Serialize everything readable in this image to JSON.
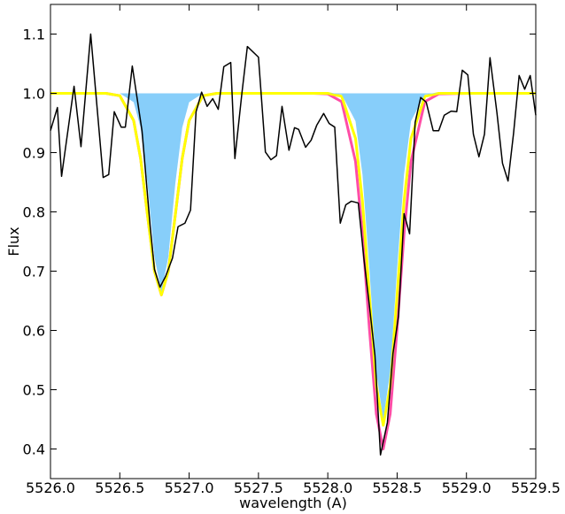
{
  "chart_data": {
    "type": "line",
    "xlabel": "wavelength (A)",
    "ylabel": "Flux",
    "xlim": [
      5526.0,
      5529.5
    ],
    "ylim": [
      0.35,
      1.15
    ],
    "xticks": [
      {
        "value": 5526.0,
        "label": "5526.0"
      },
      {
        "value": 5526.5,
        "label": "5526.5"
      },
      {
        "value": 5527.0,
        "label": "5527.0"
      },
      {
        "value": 5527.5,
        "label": "5527.5"
      },
      {
        "value": 5528.0,
        "label": "5528.0"
      },
      {
        "value": 5528.5,
        "label": "5528.5"
      },
      {
        "value": 5529.0,
        "label": "5529.0"
      },
      {
        "value": 5529.5,
        "label": "5529.5"
      }
    ],
    "yticks": [
      0.4,
      0.5,
      0.6,
      0.7,
      0.8,
      0.9,
      {
        "value": 1.0,
        "label": "1.0"
      },
      1.1
    ],
    "series": [
      {
        "color": "#ff4da6",
        "fill": false,
        "x": [
          5526.0,
          5526.4,
          5526.5,
          5526.6,
          5526.65,
          5526.7,
          5526.75,
          5526.8,
          5526.85,
          5526.9,
          5526.95,
          5527.0,
          5527.1,
          5527.2,
          5527.6,
          5527.9,
          5528.0,
          5528.1,
          5528.2,
          5528.25,
          5528.3,
          5528.35,
          5528.4,
          5528.45,
          5528.5,
          5528.55,
          5528.6,
          5528.7,
          5528.8,
          5529.0,
          5529.3,
          5529.5
        ],
        "values": [
          1.0,
          1.0,
          0.996,
          0.954,
          0.89,
          0.794,
          0.7,
          0.66,
          0.7,
          0.794,
          0.89,
          0.954,
          0.996,
          1.0,
          1.0,
          1.0,
          0.999,
          0.986,
          0.885,
          0.763,
          0.603,
          0.459,
          0.4,
          0.459,
          0.603,
          0.763,
          0.885,
          0.986,
          0.999,
          1.0,
          1.0,
          1.0
        ]
      },
      {
        "color": "#ffff00",
        "fill": false,
        "x": [
          5526.0,
          5526.4,
          5526.5,
          5526.6,
          5526.65,
          5526.7,
          5526.75,
          5526.8,
          5526.85,
          5526.9,
          5526.95,
          5527.0,
          5527.1,
          5527.2,
          5527.6,
          5527.9,
          5528.0,
          5528.1,
          5528.2,
          5528.25,
          5528.3,
          5528.35,
          5528.4,
          5528.45,
          5528.5,
          5528.55,
          5528.6,
          5528.7,
          5528.8,
          5529.0,
          5529.3,
          5529.5
        ],
        "values": [
          1.0,
          1.0,
          0.996,
          0.954,
          0.89,
          0.794,
          0.7,
          0.66,
          0.7,
          0.794,
          0.89,
          0.954,
          0.996,
          1.0,
          1.0,
          1.0,
          1.0,
          0.995,
          0.924,
          0.818,
          0.66,
          0.506,
          0.44,
          0.506,
          0.66,
          0.818,
          0.924,
          0.995,
          1.0,
          1.0,
          1.0,
          1.0
        ]
      },
      {
        "color": "#87cefa",
        "fill": true,
        "x": [
          5526.0,
          5526.4,
          5526.5,
          5526.6,
          5526.65,
          5526.7,
          5526.75,
          5526.8,
          5526.85,
          5526.9,
          5526.95,
          5527.0,
          5527.1,
          5527.2,
          5527.6,
          5527.9,
          5528.0,
          5528.1,
          5528.2,
          5528.25,
          5528.3,
          5528.35,
          5528.4,
          5528.45,
          5528.5,
          5528.55,
          5528.6,
          5528.7,
          5528.8,
          5529.0,
          5529.3,
          5529.5
        ],
        "values": [
          1.0,
          1.0,
          1.0,
          0.985,
          0.942,
          0.847,
          0.724,
          0.665,
          0.724,
          0.847,
          0.942,
          0.985,
          1.0,
          1.0,
          1.0,
          1.0,
          1.0,
          0.998,
          0.953,
          0.863,
          0.704,
          0.529,
          0.45,
          0.529,
          0.704,
          0.863,
          0.953,
          0.998,
          1.0,
          1.0,
          1.0,
          1.0
        ]
      },
      {
        "color": "#000000",
        "fill": false,
        "x": [
          5526.0,
          5526.05,
          5526.08,
          5526.17,
          5526.22,
          5526.29,
          5526.38,
          5526.42,
          5526.46,
          5526.51,
          5526.54,
          5526.59,
          5526.66,
          5526.72,
          5526.75,
          5526.79,
          5526.83,
          5526.88,
          5526.92,
          5526.97,
          5527.01,
          5527.05,
          5527.09,
          5527.13,
          5527.17,
          5527.21,
          5527.25,
          5527.3,
          5527.33,
          5527.38,
          5527.42,
          5527.5,
          5527.55,
          5527.59,
          5527.63,
          5527.67,
          5527.72,
          5527.76,
          5527.79,
          5527.84,
          5527.88,
          5527.92,
          5527.97,
          5528.01,
          5528.05,
          5528.09,
          5528.13,
          5528.17,
          5528.22,
          5528.26,
          5528.3,
          5528.34,
          5528.38,
          5528.43,
          5528.47,
          5528.51,
          5528.55,
          5528.59,
          5528.63,
          5528.67,
          5528.71,
          5528.76,
          5528.8,
          5528.84,
          5528.89,
          5528.93,
          5528.97,
          5529.01,
          5529.05,
          5529.09,
          5529.13,
          5529.17,
          5529.22,
          5529.26,
          5529.3,
          5529.34,
          5529.38,
          5529.42,
          5529.46,
          5529.5
        ],
        "values": [
          0.937,
          0.976,
          0.86,
          1.012,
          0.91,
          1.1,
          0.858,
          0.863,
          0.969,
          0.943,
          0.943,
          1.046,
          0.937,
          0.773,
          0.703,
          0.673,
          0.691,
          0.722,
          0.775,
          0.781,
          0.803,
          0.969,
          1.002,
          0.978,
          0.991,
          0.973,
          1.045,
          1.052,
          0.89,
          0.999,
          1.079,
          1.061,
          0.901,
          0.888,
          0.895,
          0.978,
          0.904,
          0.942,
          0.939,
          0.909,
          0.921,
          0.946,
          0.966,
          0.949,
          0.943,
          0.781,
          0.812,
          0.818,
          0.815,
          0.722,
          0.642,
          0.558,
          0.39,
          0.445,
          0.561,
          0.624,
          0.797,
          0.763,
          0.951,
          0.993,
          0.985,
          0.937,
          0.937,
          0.963,
          0.97,
          0.969,
          1.039,
          1.031,
          0.931,
          0.893,
          0.931,
          1.06,
          0.967,
          0.882,
          0.852,
          0.933,
          1.03,
          1.007,
          1.03,
          0.963
        ]
      }
    ]
  }
}
